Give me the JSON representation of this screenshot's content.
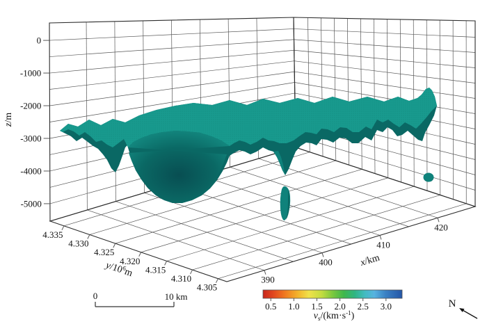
{
  "figure": {
    "background": "#ffffff",
    "grid_color": "#565656",
    "edge_color": "#2b2b2b",
    "text_color": "#111111"
  },
  "chart_data": {
    "type": "isosurface-3d",
    "title": "",
    "axes": {
      "x": {
        "label_var": "x",
        "label_rest": "/km",
        "tick_values": [
          390,
          400,
          410,
          420
        ],
        "tick_labels": [
          "390",
          "400",
          "410",
          "420"
        ],
        "grid_min": 390,
        "grid_max": 420,
        "grid_step": 5,
        "value_at_u0": 383.5,
        "value_at_u1": 426.5
      },
      "y": {
        "label_var": "y",
        "label_rest1": "/10",
        "label_sup": "6",
        "label_rest2": "m",
        "tick_values": [
          4.335,
          4.33,
          4.325,
          4.32,
          4.315,
          4.31,
          4.305
        ],
        "tick_labels": [
          "4.335",
          "4.330",
          "4.325",
          "4.320",
          "4.315",
          "4.310",
          "4.305"
        ],
        "grid_step": 0.005,
        "wall_step": 0.0025,
        "value_at_v0": 4.3033,
        "value_at_v1": 4.3377
      },
      "z": {
        "label_var": "z",
        "label_rest": "/m",
        "tick_values": [
          0,
          -1000,
          -2000,
          -3000,
          -4000,
          -5000
        ],
        "tick_labels": [
          "0",
          "-1000",
          "-2000",
          "-3000",
          "-4000",
          "-5000"
        ],
        "grid_step": 500,
        "z_min": -5000,
        "t_at_z0": 0.088,
        "t_at_zmin": 0.912
      }
    },
    "colorbar": {
      "label_var": "v",
      "label_sub": "s",
      "label_unit_open": "/(km·s",
      "label_sup": "-1",
      "label_unit_close": ")",
      "tick_values": [
        0.5,
        1.0,
        1.5,
        2.0,
        2.5,
        3.0
      ],
      "tick_labels": [
        "0.5",
        "1.0",
        "1.5",
        "2.0",
        "2.5",
        "3.0"
      ],
      "value_min": 0.33,
      "value_max": 3.35,
      "gradient": [
        [
          "0",
          "#c8251c"
        ],
        [
          "0.08",
          "#e34a1e"
        ],
        [
          "0.16",
          "#f07b21"
        ],
        [
          "0.25",
          "#f3b32c"
        ],
        [
          "0.33",
          "#f0e14a"
        ],
        [
          "0.42",
          "#c4dc3f"
        ],
        [
          "0.50",
          "#7cc83e"
        ],
        [
          "0.58",
          "#3fb74b"
        ],
        [
          "0.66",
          "#2eb583"
        ],
        [
          "0.73",
          "#41bbc0"
        ],
        [
          "0.80",
          "#57b3e0"
        ],
        [
          "0.88",
          "#3b82c4"
        ],
        [
          "1",
          "#2456a7"
        ]
      ]
    },
    "scale_bar": {
      "start_label": "0",
      "end_label": "10 km"
    },
    "north_label": "N",
    "surface": {
      "top_color": "#189a8e",
      "front_color": "#0a6864",
      "deep_color": "#084e52",
      "rim_color": "#148b82",
      "blob_color": "#0f827b",
      "stipple_color": "#0b6b66",
      "description": "Teal shear-wave velocity isosurface: undulating sheet near z = -2000 m with a deep bowl reaching about z = -4800 m on the west side, a narrow downward spike near x = 405 km, a detached vertical blob beneath it, an upward spike near the east edge, and a small detached round blob at depth"
    }
  }
}
